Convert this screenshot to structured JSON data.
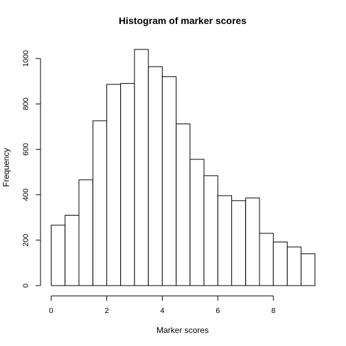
{
  "chart_data": {
    "type": "bar",
    "title": "Histogram of marker scores",
    "xlabel": "Marker scores",
    "ylabel": "Frequency",
    "bin_width": 0.5,
    "bin_starts": [
      0,
      0.5,
      1,
      1.5,
      2,
      2.5,
      3,
      3.5,
      4,
      4.5,
      5,
      5.5,
      6,
      6.5,
      7,
      7.5,
      8,
      8.5,
      9
    ],
    "values": [
      266,
      310,
      466,
      726,
      886,
      890,
      1040,
      964,
      920,
      712,
      556,
      484,
      396,
      374,
      386,
      230,
      192,
      170,
      140
    ],
    "xlim": [
      0,
      9.5
    ],
    "ylim": [
      0,
      1040
    ],
    "x_ticks": [
      0,
      2,
      4,
      6,
      8
    ],
    "x_tick_labels": [
      "0",
      "2",
      "4",
      "6",
      "8"
    ],
    "y_ticks": [
      0,
      200,
      400,
      600,
      800,
      1000
    ],
    "y_tick_labels": [
      "0",
      "200",
      "400",
      "600",
      "800",
      "1000"
    ],
    "grid": false,
    "legend": "none"
  }
}
